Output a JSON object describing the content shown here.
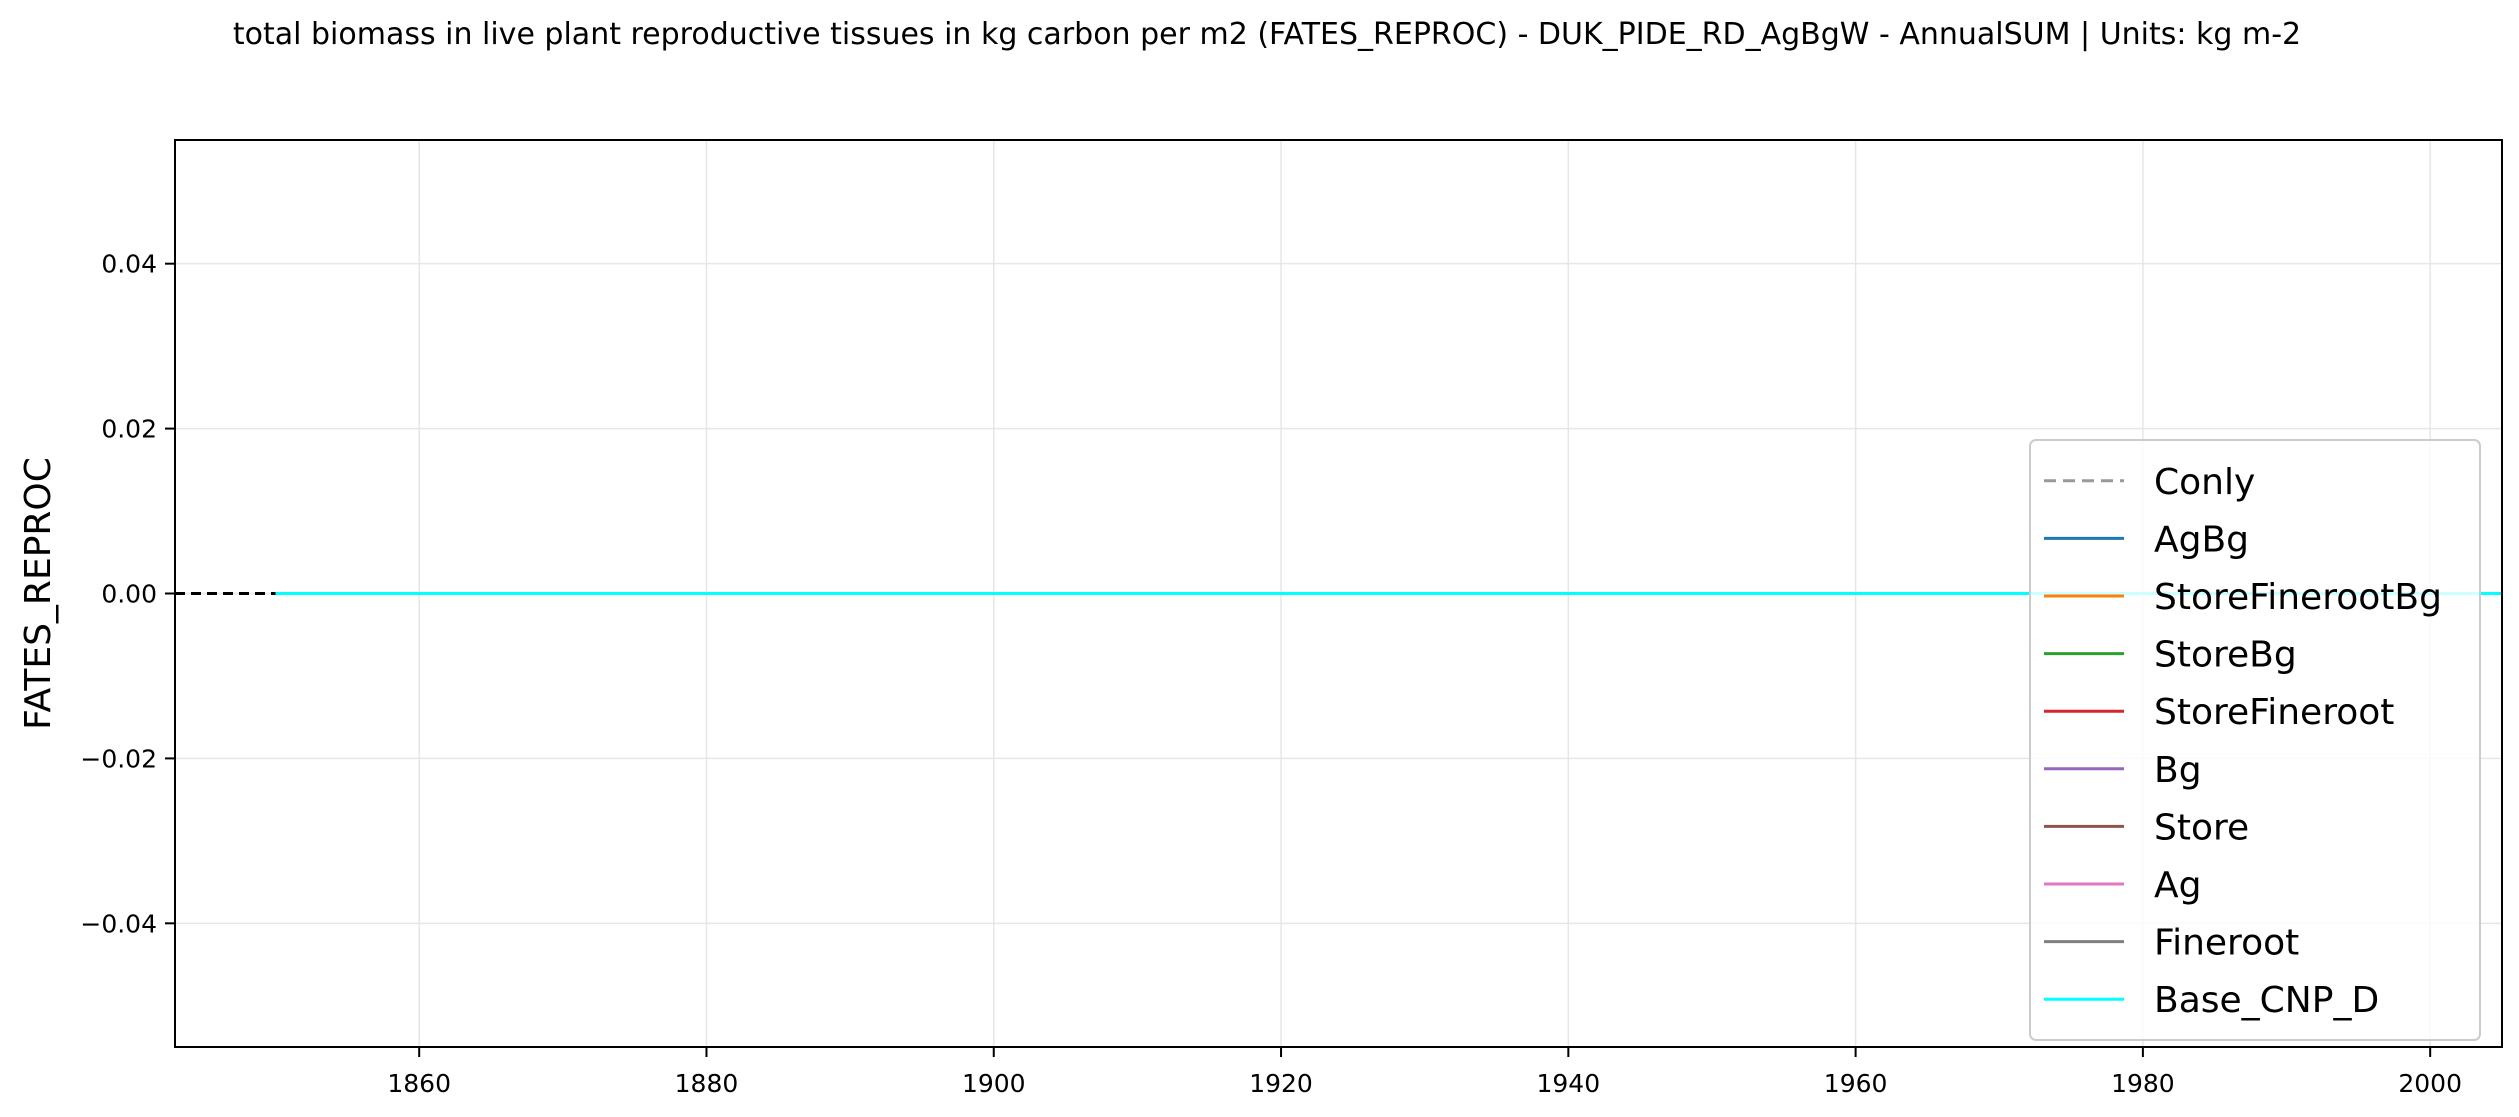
{
  "chart_data": {
    "type": "line",
    "title": "total biomass in live plant reproductive tissues in kg carbon per m2 (FATES_REPROC) - DUK_PIDE_RD_AgBgW - AnnualSUM | Units: kg m-2",
    "xlabel": "",
    "ylabel": "FATES_REPROC",
    "xlim": [
      1843,
      2005
    ],
    "ylim": [
      -0.055,
      0.055
    ],
    "x_ticks": [
      1860,
      1880,
      1900,
      1920,
      1940,
      1960,
      1980,
      2000
    ],
    "y_ticks": [
      0.04,
      0.02,
      0.0,
      -0.02,
      -0.04
    ],
    "y_tick_labels": [
      "0.04",
      "0.02",
      "0.00",
      "−0.02",
      "−0.04"
    ],
    "grid": true,
    "legend_position": "right",
    "reference_line": {
      "y": 0,
      "style": "dashed",
      "color": "#000000"
    },
    "series": [
      {
        "name": "Conly",
        "color": "#999999",
        "style": "dashed",
        "x": [
          1850,
          2005
        ],
        "y": [
          0,
          0
        ]
      },
      {
        "name": "AgBg",
        "color": "#1f77b4",
        "style": "solid",
        "x": [
          1850,
          2005
        ],
        "y": [
          0,
          0
        ]
      },
      {
        "name": "StoreFinerootBg",
        "color": "#ff7f0e",
        "style": "solid",
        "x": [
          1850,
          2005
        ],
        "y": [
          0,
          0
        ]
      },
      {
        "name": "StoreBg",
        "color": "#2ca02c",
        "style": "solid",
        "x": [
          1850,
          2005
        ],
        "y": [
          0,
          0
        ]
      },
      {
        "name": "StoreFineroot",
        "color": "#d62728",
        "style": "solid",
        "x": [
          1850,
          2005
        ],
        "y": [
          0,
          0
        ]
      },
      {
        "name": "Bg",
        "color": "#9467bd",
        "style": "solid",
        "x": [
          1850,
          2005
        ],
        "y": [
          0,
          0
        ]
      },
      {
        "name": "Store",
        "color": "#8c564b",
        "style": "solid",
        "x": [
          1850,
          2005
        ],
        "y": [
          0,
          0
        ]
      },
      {
        "name": "Ag",
        "color": "#e377c2",
        "style": "solid",
        "x": [
          1850,
          2005
        ],
        "y": [
          0,
          0
        ]
      },
      {
        "name": "Fineroot",
        "color": "#7f7f7f",
        "style": "solid",
        "x": [
          1850,
          2005
        ],
        "y": [
          0,
          0
        ]
      },
      {
        "name": "Base_CNP_D",
        "color": "#00ffff",
        "style": "solid",
        "x": [
          1850,
          2005
        ],
        "y": [
          0,
          0
        ]
      }
    ]
  }
}
